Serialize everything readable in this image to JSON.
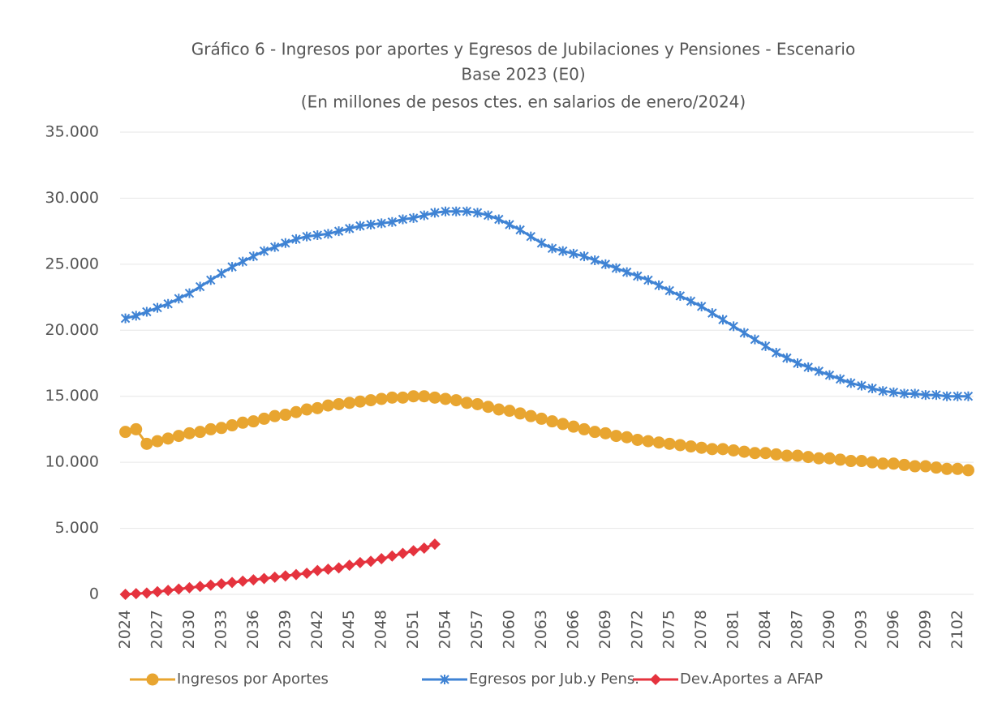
{
  "chart_data": {
    "type": "line",
    "title": "Gráfico 6 - Ingresos por aportes y Egresos de Jubilaciones y Pensiones - Escenario",
    "subtitle": "Base 2023 (E0)",
    "subtitle2": "(En millones de pesos ctes. en salarios de enero/2024)",
    "x": [
      2024,
      2025,
      2026,
      2027,
      2028,
      2029,
      2030,
      2031,
      2032,
      2033,
      2034,
      2035,
      2036,
      2037,
      2038,
      2039,
      2040,
      2041,
      2042,
      2043,
      2044,
      2045,
      2046,
      2047,
      2048,
      2049,
      2050,
      2051,
      2052,
      2053,
      2054,
      2055,
      2056,
      2057,
      2058,
      2059,
      2060,
      2061,
      2062,
      2063,
      2064,
      2065,
      2066,
      2067,
      2068,
      2069,
      2070,
      2071,
      2072,
      2073,
      2074,
      2075,
      2076,
      2077,
      2078,
      2079,
      2080,
      2081,
      2082,
      2083,
      2084,
      2085,
      2086,
      2087,
      2088,
      2089,
      2090,
      2091,
      2092,
      2093,
      2094,
      2095,
      2096,
      2097,
      2098,
      2099,
      2100,
      2101,
      2102,
      2103
    ],
    "series": [
      {
        "name": "Ingresos por Aportes",
        "color": "#e8a530",
        "marker": "circle",
        "values": [
          12300,
          12500,
          11400,
          11600,
          11800,
          12000,
          12200,
          12300,
          12500,
          12600,
          12800,
          13000,
          13100,
          13300,
          13500,
          13600,
          13800,
          14000,
          14100,
          14300,
          14400,
          14500,
          14600,
          14700,
          14800,
          14900,
          14900,
          15000,
          15000,
          14900,
          14800,
          14700,
          14500,
          14400,
          14200,
          14000,
          13900,
          13700,
          13500,
          13300,
          13100,
          12900,
          12700,
          12500,
          12300,
          12200,
          12000,
          11900,
          11700,
          11600,
          11500,
          11400,
          11300,
          11200,
          11100,
          11000,
          11000,
          10900,
          10800,
          10700,
          10700,
          10600,
          10500,
          10500,
          10400,
          10300,
          10300,
          10200,
          10100,
          10100,
          10000,
          9900,
          9900,
          9800,
          9700,
          9700,
          9600,
          9500,
          9500,
          9400
        ]
      },
      {
        "name": "Egresos por Jub.y Pens.",
        "color": "#3f83d4",
        "marker": "star",
        "values": [
          20900,
          21100,
          21400,
          21700,
          22000,
          22400,
          22800,
          23300,
          23800,
          24300,
          24800,
          25200,
          25600,
          26000,
          26300,
          26600,
          26900,
          27100,
          27200,
          27300,
          27500,
          27700,
          27900,
          28000,
          28100,
          28200,
          28400,
          28500,
          28700,
          28900,
          29000,
          29000,
          29000,
          28900,
          28700,
          28400,
          28000,
          27600,
          27100,
          26600,
          26200,
          26000,
          25800,
          25600,
          25300,
          25000,
          24700,
          24400,
          24100,
          23800,
          23400,
          23000,
          22600,
          22200,
          21800,
          21300,
          20800,
          20300,
          19800,
          19300,
          18800,
          18300,
          17900,
          17500,
          17200,
          16900,
          16600,
          16300,
          16000,
          15800,
          15600,
          15400,
          15300,
          15200,
          15200,
          15100,
          15100,
          15000,
          15000,
          15000
        ]
      },
      {
        "name": "Dev.Aportes a AFAP",
        "color": "#e5333e",
        "marker": "diamond",
        "values": [
          0,
          50,
          100,
          200,
          300,
          400,
          500,
          600,
          700,
          800,
          900,
          1000,
          1100,
          1200,
          1300,
          1400,
          1500,
          1600,
          1800,
          1900,
          2000,
          2200,
          2400,
          2500,
          2700,
          2900,
          3100,
          3300,
          3500,
          3800,
          null,
          null,
          null,
          null,
          null,
          null,
          null,
          null,
          null,
          null,
          null,
          null,
          null,
          null,
          null,
          null,
          null,
          null,
          null,
          null,
          null,
          null,
          null,
          null,
          null,
          null,
          null,
          null,
          null,
          null,
          null,
          null,
          null,
          null,
          null,
          null,
          null,
          null,
          null,
          null,
          null,
          null,
          null,
          null,
          null,
          null,
          null,
          null,
          null,
          null
        ]
      }
    ],
    "xlim": [
      2023.5,
      2103.5
    ],
    "xticks": [
      2024,
      2027,
      2030,
      2033,
      2036,
      2039,
      2042,
      2045,
      2048,
      2051,
      2054,
      2057,
      2060,
      2063,
      2066,
      2069,
      2072,
      2075,
      2078,
      2081,
      2084,
      2087,
      2090,
      2093,
      2096,
      2099,
      2102
    ],
    "ylim": [
      0,
      35000
    ],
    "yticks": [
      0,
      {
        "value": 5000,
        "label": "5.000"
      },
      {
        "value": 10000,
        "label": "10.000"
      },
      {
        "value": 15000,
        "label": "15.000"
      },
      {
        "value": 20000,
        "label": "20.000"
      },
      {
        "value": 25000,
        "label": "25.000"
      },
      {
        "value": 30000,
        "label": "30.000"
      },
      {
        "value": 35000,
        "label": "35.000"
      }
    ],
    "grid": true,
    "legend": "bottom"
  }
}
